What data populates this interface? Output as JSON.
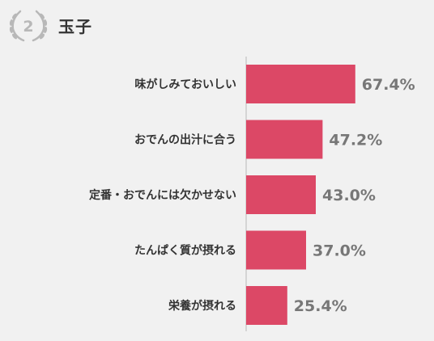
{
  "rank": {
    "number": "2",
    "title": "玉子"
  },
  "colors": {
    "bar": "#dc4866",
    "axis": "#cccccc",
    "badge": "#b8b8b8"
  },
  "icons": {
    "badge": "laurel-wreath-icon"
  },
  "chart_data": {
    "type": "bar",
    "orientation": "horizontal",
    "categories": [
      "味がしみておいしい",
      "おでんの出汁に合う",
      "定番・おでんには欠かせない",
      "たんぱく質が摂れる",
      "栄養が摂れる"
    ],
    "values": [
      67.4,
      47.2,
      43.0,
      37.0,
      25.4
    ],
    "value_labels": [
      "67.4%",
      "47.2%",
      "43.0%",
      "37.0%",
      "25.4%"
    ],
    "xlim": [
      0,
      100
    ],
    "grid": false,
    "legend": "none"
  }
}
